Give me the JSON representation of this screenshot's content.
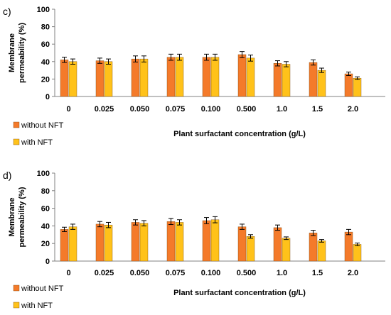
{
  "chart_data": [
    {
      "type": "bar",
      "panel_label": "c)",
      "categories": [
        "0",
        "0.025",
        "0.050",
        "0.075",
        "0.100",
        "0.500",
        "1.0",
        "1.5",
        "2.0"
      ],
      "series": [
        {
          "name": "without NFT",
          "color": "#F47A2A",
          "values": [
            42,
            41,
            43,
            45,
            45,
            48,
            38,
            39,
            26
          ],
          "errors": [
            3,
            3,
            3.5,
            3.5,
            3.5,
            3.5,
            3,
            3,
            2
          ]
        },
        {
          "name": "with NFT",
          "color": "#FFC21A",
          "values": [
            40,
            40,
            43,
            45,
            45,
            44,
            37,
            30,
            21
          ],
          "errors": [
            3,
            3,
            3.5,
            3.5,
            3.5,
            3.5,
            3,
            2.5,
            1.5
          ]
        }
      ],
      "ylabel_line1": "Membrane",
      "ylabel_line2": "permeability (%)",
      "xlabel": "Plant surfactant concentration (g/L)",
      "yticks": [
        "0",
        "20",
        "40",
        "60",
        "80",
        "100"
      ],
      "ylim": [
        0,
        100
      ],
      "grid": false,
      "legend": "bottom-left"
    },
    {
      "type": "bar",
      "panel_label": "d)",
      "categories": [
        "0",
        "0.025",
        "0.050",
        "0.075",
        "0.100",
        "0.500",
        "1.0",
        "1.5",
        "2.0"
      ],
      "series": [
        {
          "name": "without NFT",
          "color": "#F47A2A",
          "values": [
            36,
            42,
            44,
            45,
            46,
            39,
            38,
            32,
            33
          ],
          "errors": [
            2.5,
            3,
            3,
            3.5,
            3.5,
            3,
            3,
            3,
            3
          ]
        },
        {
          "name": "with NFT",
          "color": "#FFC21A",
          "values": [
            39,
            41,
            43,
            44,
            47,
            28,
            26,
            23,
            19
          ],
          "errors": [
            3,
            3,
            3,
            3,
            3.5,
            2,
            1.5,
            1.5,
            1.5
          ]
        }
      ],
      "ylabel_line1": "Membrane",
      "ylabel_line2": "permeability (%)",
      "xlabel": "Plant surfactant concentration (g/L)",
      "yticks": [
        "0",
        "20",
        "40",
        "60",
        "80",
        "100"
      ],
      "ylim": [
        0,
        100
      ],
      "grid": false,
      "legend": "bottom-left"
    }
  ]
}
